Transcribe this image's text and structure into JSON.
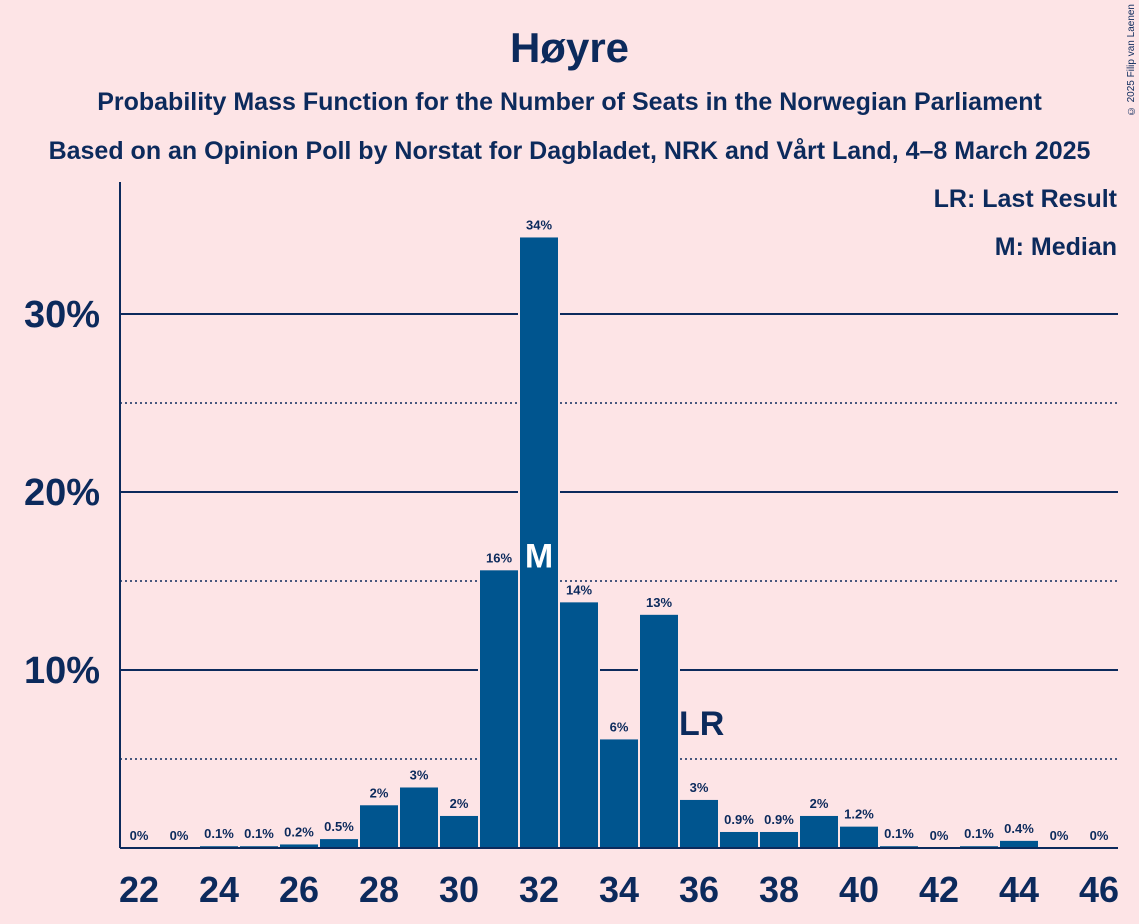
{
  "title": "Høyre",
  "subtitle1": "Probability Mass Function for the Number of Seats in the Norwegian Parliament",
  "subtitle2": "Based on an Opinion Poll by Norstat for Dagbladet, NRK and Vårt Land, 4–8 March 2025",
  "copyright": "© 2025 Filip van Laenen",
  "legend": {
    "last_result": "LR: Last Result",
    "median": "M: Median"
  },
  "colors": {
    "bar": "#00558f",
    "background": "#fde4e6",
    "text": "#0c2a5c"
  },
  "chart_data": {
    "type": "bar",
    "categories": [
      22,
      23,
      24,
      25,
      26,
      27,
      28,
      29,
      30,
      31,
      32,
      33,
      34,
      35,
      36,
      37,
      38,
      39,
      40,
      41,
      42,
      43,
      44,
      45,
      46
    ],
    "values": [
      0,
      0,
      0.1,
      0.1,
      0.2,
      0.5,
      2.4,
      3.4,
      1.8,
      15.6,
      34.3,
      13.8,
      6.1,
      13.1,
      2.7,
      0.9,
      0.9,
      1.8,
      1.2,
      0.1,
      0,
      0.1,
      0.4,
      0,
      0
    ],
    "value_labels": [
      "0%",
      "0%",
      "0.1%",
      "0.1%",
      "0.2%",
      "0.5%",
      "2%",
      "3%",
      "2%",
      "16%",
      "34%",
      "14%",
      "6%",
      "13%",
      "3%",
      "0.9%",
      "0.9%",
      "2%",
      "1.2%",
      "0.1%",
      "0%",
      "0.1%",
      "0.4%",
      "0%",
      "0%"
    ],
    "x_tick_labels": [
      "22",
      "24",
      "26",
      "28",
      "30",
      "32",
      "34",
      "36",
      "38",
      "40",
      "42",
      "44",
      "46"
    ],
    "y_ticks": [
      {
        "value": 10,
        "label": "10%"
      },
      {
        "value": 20,
        "label": "20%"
      },
      {
        "value": 30,
        "label": "30%"
      }
    ],
    "y_minor_ticks": [
      5,
      15,
      25
    ],
    "ylim": [
      0,
      37.5
    ],
    "median": {
      "seat": 32,
      "label": "M"
    },
    "last_result": {
      "seat": 36,
      "label": "LR"
    },
    "grid": true,
    "legend_position": "top-right"
  }
}
